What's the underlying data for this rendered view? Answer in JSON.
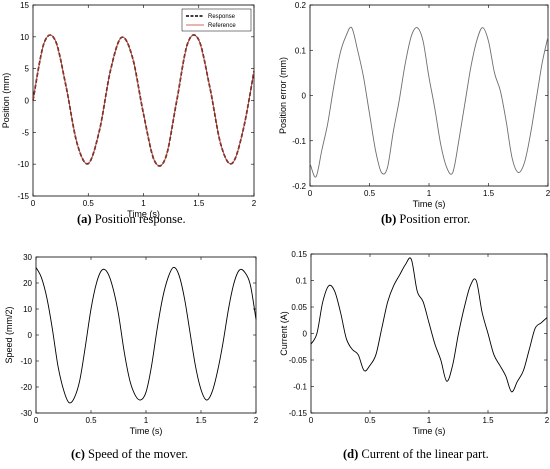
{
  "captions": [
    {
      "tag": "(a)",
      "text": "Position response."
    },
    {
      "tag": "(b)",
      "text": "Position error."
    },
    {
      "tag": "(c)",
      "text": "Speed of the mover."
    },
    {
      "tag": "(d)",
      "text": "Current of the linear part."
    }
  ],
  "chart_data": [
    {
      "type": "line",
      "xlabel": "Time (s)",
      "ylabel": "Position (mm)",
      "xlim": [
        0,
        2
      ],
      "ylim": [
        -15,
        15
      ],
      "xticks": [
        "0",
        "0.5",
        "1",
        "1.5",
        "2"
      ],
      "yticks": [
        "15",
        "10",
        "5",
        "0",
        "-5",
        "-10",
        "-15"
      ],
      "legend_position": "top-right",
      "series": [
        {
          "name": "Response",
          "color": "#000000",
          "style": "dashed",
          "x": [
            0,
            0.1,
            0.2,
            0.3,
            0.4,
            0.5,
            0.6,
            0.7,
            0.8,
            0.9,
            1.0,
            1.1,
            1.2,
            1.3,
            1.4,
            1.5,
            1.6,
            1.7,
            1.8,
            1.9,
            2.0
          ],
          "values": [
            0,
            9.0,
            9.5,
            2.1,
            -6.8,
            -9.9,
            -4.8,
            4.6,
            9.9,
            6.8,
            -2.1,
            -9.5,
            -9.0,
            -0.1,
            9.0,
            9.5,
            2.1,
            -6.9,
            -9.9,
            -4.8,
            4.6
          ]
        },
        {
          "name": "Reference",
          "color": "#c0392b",
          "style": "solid",
          "x": [
            0,
            0.1,
            0.2,
            0.3,
            0.4,
            0.5,
            0.6,
            0.7,
            0.8,
            0.9,
            1.0,
            1.1,
            1.2,
            1.3,
            1.4,
            1.5,
            1.6,
            1.7,
            1.8,
            1.9,
            2.0
          ],
          "values": [
            0,
            9.0,
            9.5,
            2.1,
            -6.8,
            -9.9,
            -4.8,
            4.6,
            9.9,
            6.8,
            -2.1,
            -9.5,
            -9.0,
            -0.1,
            9.0,
            9.5,
            2.1,
            -6.9,
            -9.9,
            -4.8,
            4.6
          ]
        }
      ]
    },
    {
      "type": "line",
      "xlabel": "Time (s)",
      "ylabel": "Position error (mm)",
      "xlim": [
        0,
        2
      ],
      "ylim": [
        -0.2,
        0.2
      ],
      "xticks": [
        "0",
        "0.5",
        "1",
        "1.5",
        "2"
      ],
      "yticks": [
        "0.2",
        "0.1",
        "0",
        "-0.1",
        "-0.2"
      ],
      "series": [
        {
          "color": "#6e6e6e",
          "x": [
            0,
            0.05,
            0.1,
            0.15,
            0.2,
            0.25,
            0.3,
            0.35,
            0.4,
            0.45,
            0.5,
            0.55,
            0.6,
            0.65,
            0.7,
            0.75,
            0.8,
            0.85,
            0.9,
            0.95,
            1.0,
            1.05,
            1.1,
            1.15,
            1.2,
            1.25,
            1.3,
            1.35,
            1.4,
            1.45,
            1.5,
            1.55,
            1.6,
            1.65,
            1.7,
            1.75,
            1.8,
            1.85,
            1.9,
            1.95,
            2.0
          ],
          "values": [
            -0.15,
            -0.18,
            -0.12,
            -0.06,
            0.02,
            0.09,
            0.13,
            0.15,
            0.1,
            0.04,
            -0.04,
            -0.12,
            -0.17,
            -0.16,
            -0.08,
            -0.01,
            0.07,
            0.13,
            0.15,
            0.12,
            0.04,
            -0.03,
            -0.11,
            -0.16,
            -0.17,
            -0.1,
            -0.02,
            0.06,
            0.12,
            0.15,
            0.12,
            0.05,
            0.01,
            -0.06,
            -0.14,
            -0.17,
            -0.15,
            -0.09,
            -0.01,
            0.07,
            0.13
          ]
        }
      ]
    },
    {
      "type": "line",
      "xlabel": "Time (s)",
      "ylabel": "Speed (mm/2)",
      "xlim": [
        0,
        2
      ],
      "ylim": [
        -30,
        30
      ],
      "xticks": [
        "0",
        "0.5",
        "1",
        "1.5",
        "2"
      ],
      "yticks": [
        "30",
        "20",
        "10",
        "0",
        "-10",
        "-20",
        "-30"
      ],
      "series": [
        {
          "color": "#000000",
          "x": [
            0,
            0.05,
            0.1,
            0.15,
            0.2,
            0.25,
            0.3,
            0.35,
            0.4,
            0.45,
            0.5,
            0.55,
            0.6,
            0.65,
            0.7,
            0.75,
            0.8,
            0.85,
            0.9,
            0.95,
            1.0,
            1.05,
            1.1,
            1.15,
            1.2,
            1.25,
            1.3,
            1.35,
            1.4,
            1.45,
            1.5,
            1.55,
            1.6,
            1.65,
            1.7,
            1.75,
            1.8,
            1.85,
            1.9,
            1.95,
            2.0
          ],
          "values": [
            26,
            22,
            14,
            2,
            -12,
            -21,
            -26,
            -24,
            -17,
            -4,
            10,
            20,
            25,
            24,
            18,
            8,
            -6,
            -17,
            -23,
            -25,
            -22,
            -12,
            2,
            14,
            22,
            26,
            23,
            14,
            1,
            -12,
            -21,
            -25,
            -22,
            -14,
            -3,
            10,
            20,
            25,
            24,
            19,
            6
          ]
        }
      ]
    },
    {
      "type": "line",
      "xlabel": "Time (s)",
      "ylabel": "Current (A)",
      "xlim": [
        0,
        2
      ],
      "ylim": [
        -0.15,
        0.15
      ],
      "xticks": [
        "0",
        "0.5",
        "1",
        "1.5",
        "2"
      ],
      "yticks": [
        "0.15",
        "0.1",
        "0.05",
        "0",
        "-0.05",
        "-0.1",
        "-0.15"
      ],
      "series": [
        {
          "color": "#000000",
          "x": [
            0,
            0.05,
            0.1,
            0.15,
            0.2,
            0.25,
            0.3,
            0.35,
            0.4,
            0.45,
            0.5,
            0.55,
            0.6,
            0.65,
            0.7,
            0.75,
            0.8,
            0.85,
            0.9,
            0.95,
            1.0,
            1.05,
            1.1,
            1.15,
            1.2,
            1.25,
            1.3,
            1.35,
            1.4,
            1.45,
            1.5,
            1.55,
            1.6,
            1.65,
            1.7,
            1.75,
            1.8,
            1.85,
            1.9,
            1.95,
            2.0
          ],
          "values": [
            -0.02,
            0.0,
            0.06,
            0.09,
            0.08,
            0.04,
            -0.01,
            -0.03,
            -0.04,
            -0.07,
            -0.06,
            -0.04,
            0.01,
            0.06,
            0.09,
            0.11,
            0.13,
            0.14,
            0.08,
            0.06,
            0.02,
            -0.02,
            -0.05,
            -0.09,
            -0.06,
            0.0,
            0.05,
            0.09,
            0.1,
            0.04,
            0.0,
            -0.04,
            -0.06,
            -0.08,
            -0.11,
            -0.09,
            -0.07,
            -0.03,
            0.01,
            0.02,
            0.03
          ]
        }
      ]
    }
  ]
}
